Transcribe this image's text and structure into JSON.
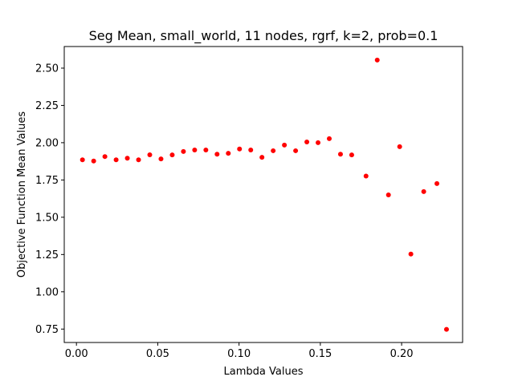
{
  "chart_data": {
    "type": "scatter",
    "title": "Seg Mean, small_world, 11 nodes, rgrf, k=2, prob=0.1",
    "xlabel": "Lambda Values",
    "ylabel": "Objective Function Mean Values",
    "xlim": [
      -0.0075,
      0.2375
    ],
    "ylim": [
      0.66,
      2.645
    ],
    "xticks": [
      0.0,
      0.05,
      0.1,
      0.15,
      0.2
    ],
    "xtick_labels": [
      "0.00",
      "0.05",
      "0.10",
      "0.15",
      "0.20"
    ],
    "yticks": [
      0.75,
      1.0,
      1.25,
      1.5,
      1.75,
      2.0,
      2.25,
      2.5
    ],
    "ytick_labels": [
      "0.75",
      "1.00",
      "1.25",
      "1.50",
      "1.75",
      "2.00",
      "2.25",
      "2.50"
    ],
    "grid": false,
    "legend": "none",
    "marker_color": "#ff0000",
    "series": [
      {
        "x": [
          0.0037,
          0.0106,
          0.0175,
          0.0244,
          0.0313,
          0.0382,
          0.0451,
          0.052,
          0.0589,
          0.0658,
          0.0727,
          0.0796,
          0.0865,
          0.0934,
          0.1003,
          0.1072,
          0.1141,
          0.121,
          0.1279,
          0.1348,
          0.1417,
          0.1486,
          0.1555,
          0.1624,
          0.1693,
          0.1781,
          0.185,
          0.1919,
          0.1988,
          0.2057,
          0.2136,
          0.2217,
          0.2276
        ],
        "y": [
          1.885,
          1.877,
          1.907,
          1.885,
          1.896,
          1.885,
          1.919,
          1.891,
          1.918,
          1.941,
          1.951,
          1.951,
          1.923,
          1.929,
          1.958,
          1.951,
          1.902,
          1.946,
          1.984,
          1.946,
          2.005,
          2.0,
          2.027,
          1.923,
          1.918,
          1.776,
          2.554,
          1.65,
          1.973,
          1.253,
          1.672,
          1.726,
          0.748
        ]
      }
    ]
  }
}
